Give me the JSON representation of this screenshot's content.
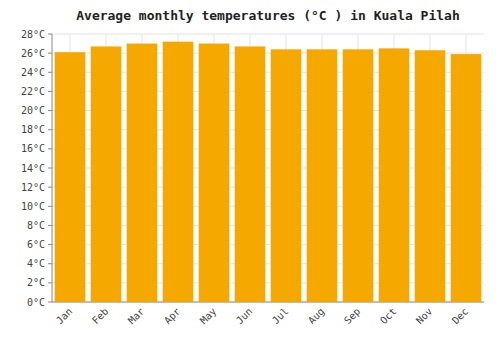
{
  "chart_data": {
    "type": "bar",
    "title": "Average monthly temperatures (°C ) in Kuala Pilah",
    "categories": [
      "Jan",
      "Feb",
      "Mar",
      "Apr",
      "May",
      "Jun",
      "Jul",
      "Aug",
      "Sep",
      "Oct",
      "Nov",
      "Dec"
    ],
    "values": [
      26.1,
      26.7,
      27.0,
      27.2,
      27.0,
      26.7,
      26.4,
      26.4,
      26.4,
      26.5,
      26.3,
      25.9
    ],
    "color": "#F5A800",
    "ylim": [
      0,
      28
    ],
    "yticks": [
      {
        "value": 0,
        "label": "0°C"
      },
      {
        "value": 2,
        "label": "2°C"
      },
      {
        "value": 4,
        "label": "4°C"
      },
      {
        "value": 6,
        "label": "6°C"
      },
      {
        "value": 8,
        "label": "8°C"
      },
      {
        "value": 10,
        "label": "10°C"
      },
      {
        "value": 12,
        "label": "12°C"
      },
      {
        "value": 14,
        "label": "14°C"
      },
      {
        "value": 16,
        "label": "16°C"
      },
      {
        "value": 18,
        "label": "18°C"
      },
      {
        "value": 20,
        "label": "20°C"
      },
      {
        "value": 22,
        "label": "22°C"
      },
      {
        "value": 24,
        "label": "24°C"
      },
      {
        "value": 26,
        "label": "26°C"
      },
      {
        "value": 28,
        "label": "28°C"
      }
    ],
    "grid": true
  }
}
